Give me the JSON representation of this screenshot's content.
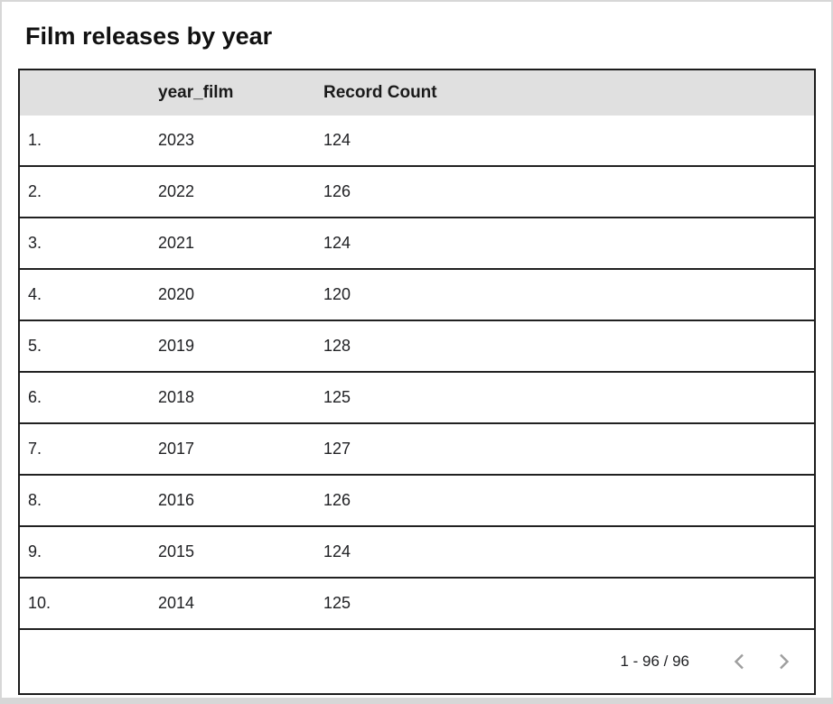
{
  "header": {
    "title": "Film releases by year"
  },
  "chart_data": {
    "type": "table",
    "title": "Film releases by year",
    "columns": [
      "",
      "year_film",
      "Record Count"
    ],
    "rows": [
      [
        "1.",
        "2023",
        "124"
      ],
      [
        "2.",
        "2022",
        "126"
      ],
      [
        "3.",
        "2021",
        "124"
      ],
      [
        "4.",
        "2020",
        "120"
      ],
      [
        "5.",
        "2019",
        "128"
      ],
      [
        "6.",
        "2018",
        "125"
      ],
      [
        "7.",
        "2017",
        "127"
      ],
      [
        "8.",
        "2016",
        "126"
      ],
      [
        "9.",
        "2015",
        "124"
      ],
      [
        "10.",
        "2014",
        "125"
      ]
    ]
  },
  "pagination": {
    "range": "1 - 96 / 96",
    "prev_icon": "chevron-left",
    "next_icon": "chevron-right"
  },
  "colors": {
    "header_bg": "#e0e0e0",
    "table_border": "#1c1c1c",
    "row_divider": "#212121",
    "chevron": "#9e9e9e",
    "outer_border": "#d7d7d7",
    "text": "#202124"
  }
}
